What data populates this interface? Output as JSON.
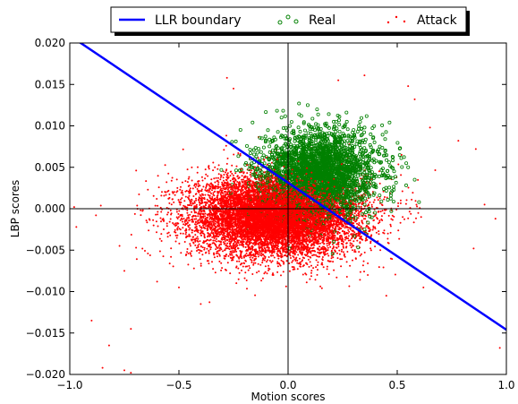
{
  "chart_data": {
    "type": "scatter",
    "xlabel": "Motion scores",
    "ylabel": "LBP scores",
    "xlim": [
      -1.0,
      1.0
    ],
    "ylim": [
      -0.02,
      0.02
    ],
    "x_ticks": [
      "−1.0",
      "−0.5",
      "0.0",
      "0.5",
      "1.0"
    ],
    "y_ticks": [
      "−0.020",
      "−0.015",
      "−0.010",
      "−0.005",
      "0.000",
      "0.005",
      "0.010",
      "0.015",
      "0.020"
    ],
    "x_tick_values": [
      -1.0,
      -0.5,
      0.0,
      0.5,
      1.0
    ],
    "y_tick_values": [
      -0.02,
      -0.015,
      -0.01,
      -0.005,
      0.0,
      0.005,
      0.01,
      0.015,
      0.02
    ],
    "grid": false,
    "reference_lines": {
      "x": 0.0,
      "y": 0.0
    },
    "legend_position": "top-center",
    "series": [
      {
        "name": "LLR boundary",
        "kind": "line",
        "color": "#0000ff",
        "x": [
          -1.0,
          -0.95,
          1.0
        ],
        "y": [
          0.0208,
          0.02,
          -0.0146
        ]
      },
      {
        "name": "Real",
        "kind": "scatter",
        "color": "#008000",
        "marker": "hollow-circle",
        "center": [
          0.15,
          0.0045
        ],
        "spread": [
          0.13,
          0.0025
        ],
        "points": [
          [
            0.05,
            0.0127
          ],
          [
            0.09,
            0.0125
          ],
          [
            -0.03,
            0.011
          ],
          [
            0.3,
            0.0095
          ],
          [
            0.42,
            0.0075
          ],
          [
            0.55,
            0.005
          ],
          [
            0.6,
            0.0008
          ],
          [
            0.35,
            -0.0025
          ],
          [
            -0.12,
            0.0085
          ],
          [
            0.22,
            0.0105
          ],
          [
            0.48,
            0.0062
          ],
          [
            0.58,
            0.0035
          ]
        ]
      },
      {
        "name": "Attack",
        "kind": "scatter",
        "color": "#ff0000",
        "marker": "dot",
        "center": [
          -0.05,
          -0.0008
        ],
        "spread": [
          0.2,
          0.0025
        ],
        "points": [
          [
            -0.75,
            -0.0195
          ],
          [
            -0.72,
            -0.0145
          ],
          [
            -0.82,
            -0.0165
          ],
          [
            -0.85,
            -0.0192
          ],
          [
            -0.72,
            -0.0198
          ],
          [
            -0.9,
            -0.0135
          ],
          [
            0.97,
            -0.0168
          ],
          [
            0.85,
            -0.0048
          ],
          [
            0.86,
            0.0072
          ],
          [
            0.78,
            0.0082
          ],
          [
            0.9,
            0.0005
          ],
          [
            0.95,
            -0.0012
          ],
          [
            0.55,
            0.0148
          ],
          [
            0.35,
            0.0161
          ],
          [
            0.23,
            0.0155
          ],
          [
            -0.28,
            0.0158
          ],
          [
            -0.25,
            0.0145
          ],
          [
            0.52,
            0.0065
          ],
          [
            0.65,
            0.0098
          ],
          [
            0.58,
            0.0132
          ],
          [
            -0.97,
            -0.0022
          ],
          [
            -0.88,
            -0.0008
          ],
          [
            -0.98,
            0.0002
          ],
          [
            -0.75,
            -0.0075
          ],
          [
            -0.6,
            -0.0088
          ],
          [
            -0.5,
            -0.0095
          ],
          [
            0.62,
            -0.0095
          ],
          [
            0.45,
            -0.0105
          ],
          [
            -0.4,
            -0.0115
          ],
          [
            0.1,
            -0.0085
          ]
        ]
      }
    ]
  }
}
